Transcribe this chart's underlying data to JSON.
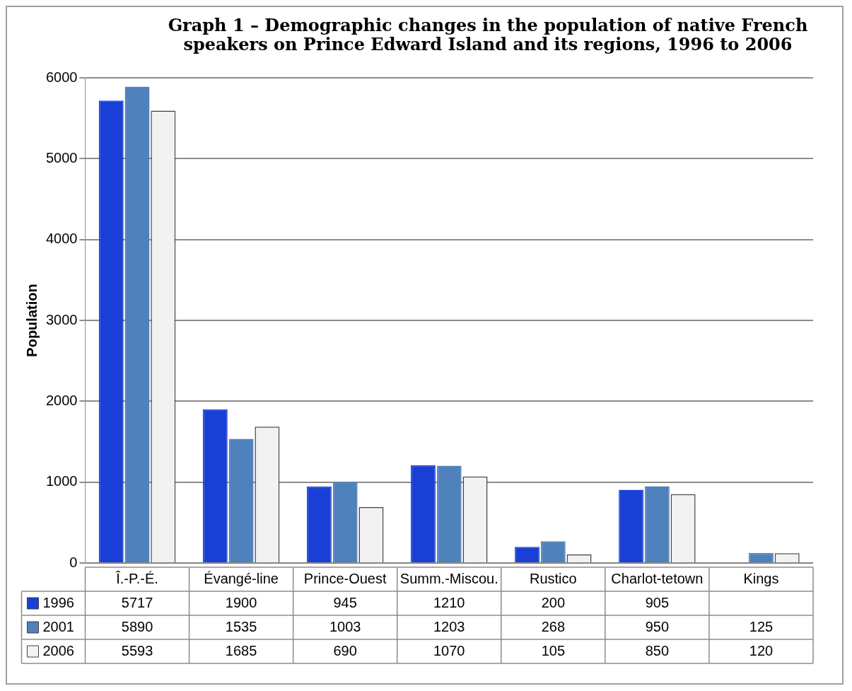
{
  "chart_data": {
    "type": "bar",
    "title": "Graph 1 – Demographic changes in the population of native French speakers on Prince Edward Island and its regions, 1996 to 2006",
    "ylabel": "Population",
    "categories": [
      "Î.-P.-É.",
      "Évangé-line",
      "Prince-Ouest",
      "Summ.-Miscou.",
      "Rustico",
      "Charlot-tetown",
      "Kings"
    ],
    "series": [
      {
        "name": "1996",
        "color": "#1a3fd6",
        "values": [
          5717,
          1900,
          945,
          1210,
          200,
          905,
          null
        ]
      },
      {
        "name": "2001",
        "color": "#4f81bd",
        "values": [
          5890,
          1535,
          1003,
          1203,
          268,
          950,
          125
        ]
      },
      {
        "name": "2006",
        "color": "#f2f2f2",
        "values": [
          5593,
          1685,
          690,
          1070,
          105,
          850,
          120
        ]
      }
    ],
    "ylim": [
      0,
      6000
    ],
    "yticks": [
      0,
      1000,
      2000,
      3000,
      4000,
      5000,
      6000
    ],
    "grid": "y",
    "legend": "bottom",
    "data_labels": true
  }
}
